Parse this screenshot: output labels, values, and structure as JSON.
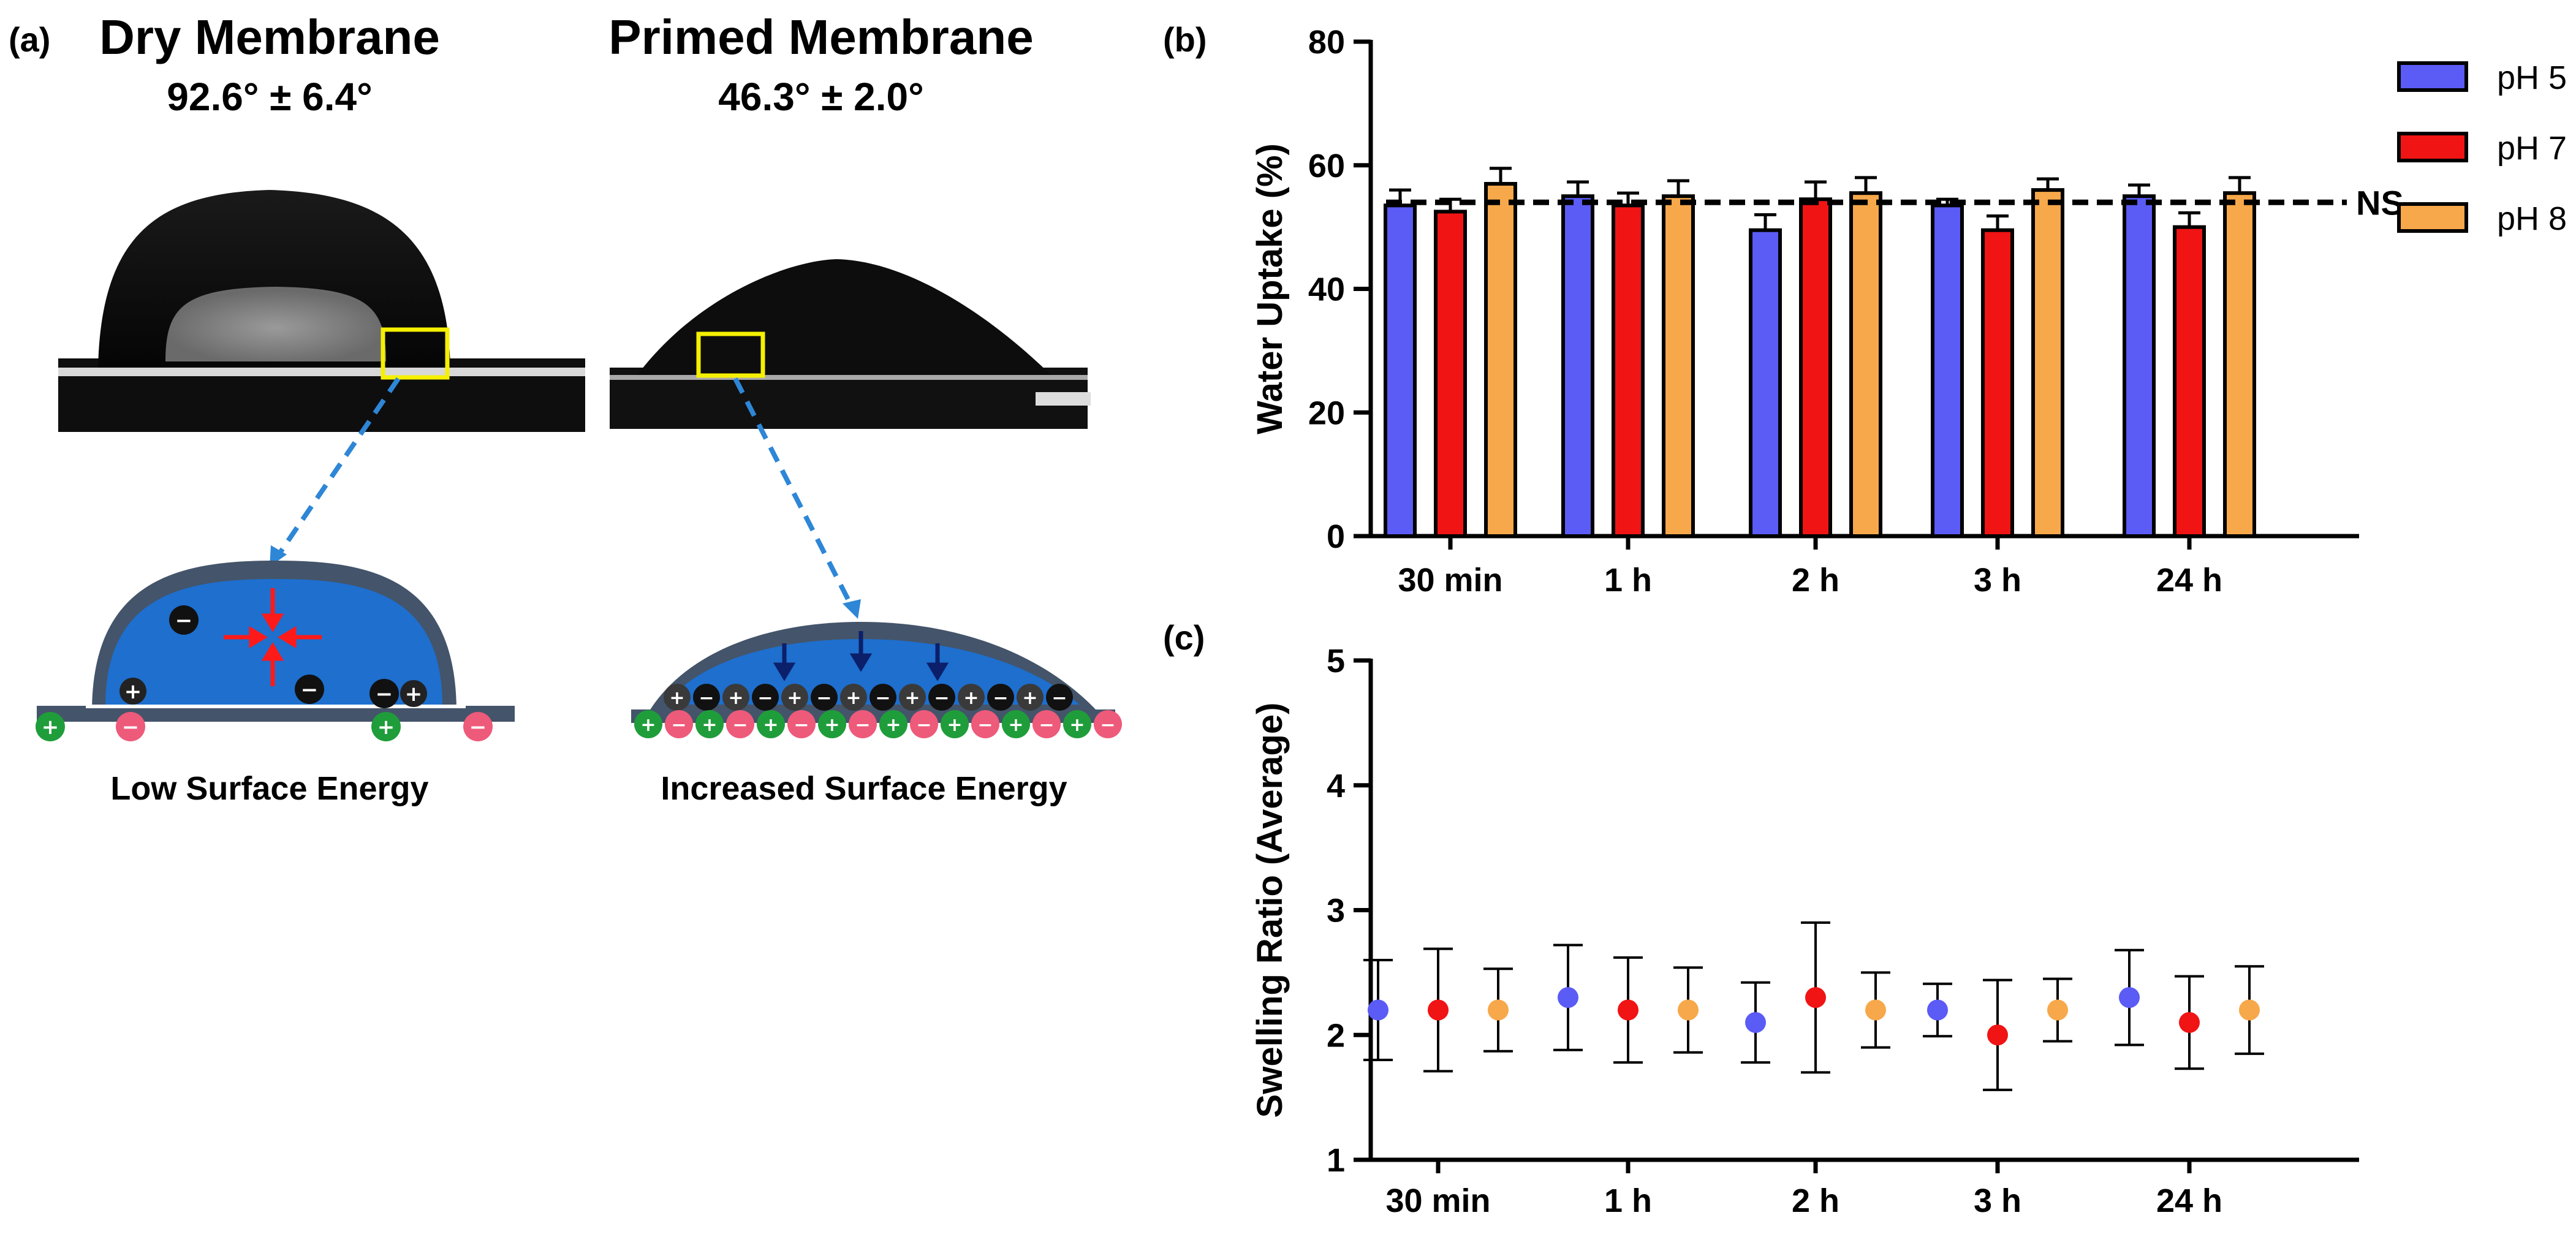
{
  "panel_a": {
    "label": "(a)",
    "dry": {
      "title": "Dry Membrane",
      "angle": "92.6° ± 6.4°",
      "caption": "Low Surface Energy"
    },
    "primed": {
      "title": "Primed Membrane",
      "angle": "46.3° ± 2.0°",
      "caption": "Increased Surface Energy"
    }
  },
  "legend": [
    {
      "name": "pH 5",
      "color": "#5b5bf5"
    },
    {
      "name": "pH 7",
      "color": "#f01414"
    },
    {
      "name": "pH 8",
      "color": "#f7a84a"
    }
  ],
  "chart_data": [
    {
      "panel": "(b)",
      "type": "bar",
      "title": "",
      "xlabel": "",
      "ylabel": "Water Uptake (%)",
      "categories": [
        "30  min",
        "1 h",
        "2 h",
        "3 h",
        "24 h"
      ],
      "ylim": [
        0,
        80
      ],
      "yticks": [
        0,
        20,
        40,
        60,
        80
      ],
      "series": [
        {
          "name": "pH 5",
          "values": [
            53.5,
            55.0,
            49.5,
            53.5,
            55.0
          ],
          "errors": [
            2.5,
            2.3,
            2.5,
            1.0,
            1.8
          ]
        },
        {
          "name": "pH 7",
          "values": [
            52.5,
            53.5,
            54.5,
            49.5,
            50.0
          ],
          "errors": [
            2.0,
            2.0,
            2.8,
            2.3,
            2.3
          ]
        },
        {
          "name": "pH 8",
          "values": [
            57.0,
            55.0,
            55.5,
            56.0,
            55.5
          ],
          "errors": [
            2.5,
            2.5,
            2.5,
            1.8,
            2.5
          ]
        }
      ],
      "reference_line": {
        "value": 54,
        "style": "dashed",
        "label": "NS"
      }
    },
    {
      "panel": "(c)",
      "type": "scatter",
      "title": "",
      "xlabel": "",
      "ylabel": "Swelling Ratio (Average)",
      "categories": [
        "30 min",
        "1 h",
        "2 h",
        "3 h",
        "24 h"
      ],
      "ylim": [
        1,
        5
      ],
      "yticks": [
        1,
        2,
        3,
        4,
        5
      ],
      "series": [
        {
          "name": "pH 5",
          "values": [
            2.2,
            2.3,
            2.1,
            2.2,
            2.3
          ],
          "errors": [
            0.4,
            0.42,
            0.32,
            0.21,
            0.38
          ]
        },
        {
          "name": "pH 7",
          "values": [
            2.2,
            2.2,
            2.3,
            2.0,
            2.1
          ],
          "errors": [
            0.49,
            0.42,
            0.6,
            0.44,
            0.37
          ]
        },
        {
          "name": "pH 8",
          "values": [
            2.2,
            2.2,
            2.2,
            2.2,
            2.2
          ],
          "errors": [
            0.33,
            0.34,
            0.3,
            0.25,
            0.35
          ]
        }
      ]
    }
  ]
}
